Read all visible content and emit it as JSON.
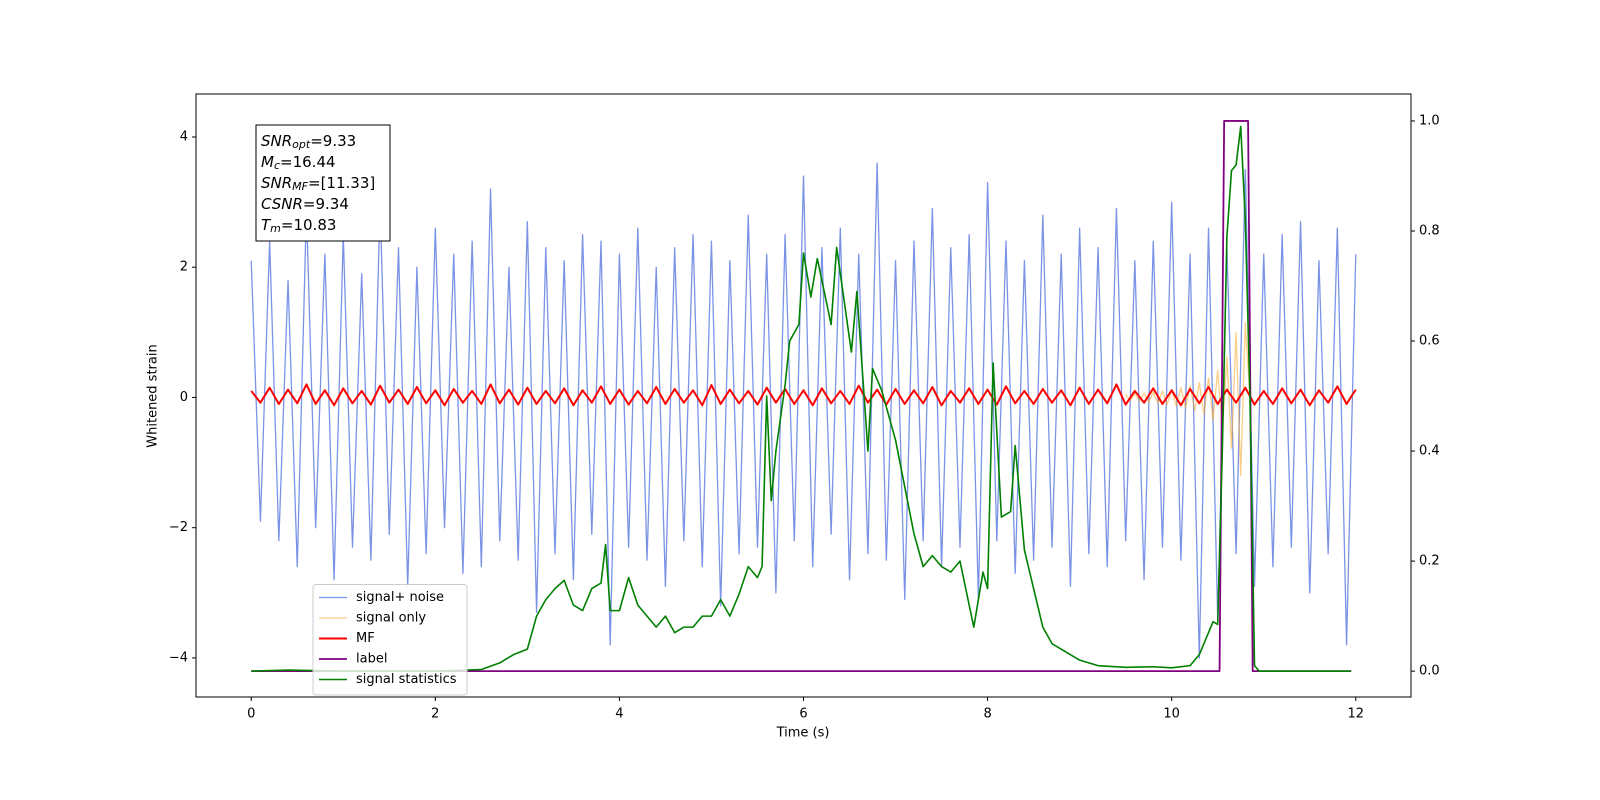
{
  "chart_data": {
    "type": "line",
    "xlabel": "Time (s)",
    "ylabel": "Whitened strain",
    "xlim": [
      -0.6,
      12.6
    ],
    "ylim": [
      -4.6,
      4.66
    ],
    "y2lim": [
      -0.047,
      1.049
    ],
    "xticks": [
      0,
      2,
      4,
      6,
      8,
      10,
      12
    ],
    "yticks": [
      {
        "value": -4,
        "label": "−4"
      },
      {
        "value": -2,
        "label": "−2"
      },
      0,
      2,
      4
    ],
    "y2ticks": [
      {
        "value": 0,
        "label": "0.0"
      },
      0.2,
      0.4,
      0.6,
      0.8,
      {
        "value": 1,
        "label": "1.0"
      }
    ],
    "legend_loc": "lower left",
    "annotation": [
      {
        "text": "SNR",
        "sub": "opt",
        "value": "=9.33"
      },
      {
        "text": "M",
        "sub": "c",
        "value": "=16.44"
      },
      {
        "text": "SNR",
        "sub": "MF",
        "value": "=[11.33]"
      },
      {
        "text": "CSNR",
        "sub": "",
        "value": "=9.34"
      },
      {
        "text": "T",
        "sub": "m",
        "value": "=10.83"
      }
    ],
    "series": [
      {
        "name": "signal+ noise",
        "color": "#7b93e6",
        "axis": "y",
        "x": [
          0,
          0.1,
          0.2,
          0.3,
          0.4,
          0.5,
          0.6,
          0.7,
          0.8,
          0.9,
          1,
          1.1,
          1.2,
          1.3,
          1.4,
          1.5,
          1.6,
          1.7,
          1.8,
          1.9,
          2,
          2.1,
          2.2,
          2.3,
          2.4,
          2.5,
          2.6,
          2.7,
          2.8,
          2.9,
          3,
          3.1,
          3.2,
          3.3,
          3.4,
          3.5,
          3.6,
          3.7,
          3.8,
          3.9,
          4,
          4.1,
          4.2,
          4.3,
          4.4,
          4.5,
          4.6,
          4.7,
          4.8,
          4.9,
          5,
          5.1,
          5.2,
          5.3,
          5.4,
          5.5,
          5.6,
          5.7,
          5.8,
          5.9,
          6,
          6.1,
          6.2,
          6.3,
          6.4,
          6.5,
          6.6,
          6.7,
          6.8,
          6.9,
          7,
          7.1,
          7.2,
          7.3,
          7.4,
          7.5,
          7.6,
          7.7,
          7.8,
          7.9,
          8,
          8.1,
          8.2,
          8.3,
          8.4,
          8.5,
          8.6,
          8.7,
          8.8,
          8.9,
          9,
          9.1,
          9.2,
          9.3,
          9.4,
          9.5,
          9.6,
          9.7,
          9.8,
          9.9,
          10,
          10.1,
          10.2,
          10.3,
          10.4,
          10.5,
          10.6,
          10.7,
          10.8,
          10.9,
          11,
          11.1,
          11.2,
          11.3,
          11.4,
          11.5,
          11.6,
          11.7,
          11.8,
          11.9,
          12
        ],
        "values": [
          2.1,
          -1.9,
          2.4,
          -2.2,
          1.8,
          -2.6,
          2.9,
          -2.0,
          2.2,
          -2.8,
          2.5,
          -2.3,
          1.9,
          -2.5,
          3.0,
          -2.1,
          2.3,
          -2.9,
          2.0,
          -2.4,
          2.6,
          -2.0,
          2.2,
          -2.7,
          2.4,
          -2.6,
          3.2,
          -2.2,
          2.0,
          -2.5,
          2.7,
          -3.3,
          2.3,
          -2.4,
          2.1,
          -2.8,
          2.5,
          -2.1,
          2.4,
          -3.8,
          2.2,
          -2.3,
          2.6,
          -2.5,
          2.0,
          -2.9,
          2.3,
          -2.2,
          2.5,
          -2.6,
          2.4,
          -3.2,
          2.1,
          -2.4,
          2.8,
          -2.3,
          2.2,
          -3.0,
          2.5,
          -2.2,
          3.4,
          -2.6,
          2.3,
          -2.1,
          2.6,
          -2.8,
          2.2,
          -2.4,
          3.6,
          -2.5,
          2.1,
          -3.1,
          2.4,
          -2.2,
          2.9,
          -2.6,
          2.3,
          -2.3,
          2.5,
          -3.1,
          3.3,
          -2.2,
          2.4,
          -2.7,
          2.1,
          -2.5,
          2.8,
          -2.3,
          2.2,
          -2.9,
          2.6,
          -2.4,
          2.3,
          -2.6,
          2.9,
          -2.2,
          2.1,
          -2.8,
          2.4,
          -2.3,
          3.0,
          -2.5,
          2.2,
          -4.0,
          2.6,
          -3.4,
          2.3,
          -2.4,
          3.5,
          -2.9,
          2.2,
          -2.6,
          2.5,
          -2.3,
          2.7,
          -3.0,
          2.1,
          -2.4,
          2.6,
          -3.8,
          2.2
        ]
      },
      {
        "name": "signal only",
        "color": "#f5a623",
        "axis": "y",
        "x": [
          9.5,
          9.55,
          9.6,
          9.65,
          9.7,
          9.75,
          9.8,
          9.85,
          9.9,
          9.95,
          10,
          10.05,
          10.1,
          10.15,
          10.2,
          10.25,
          10.3,
          10.35,
          10.4,
          10.45,
          10.5,
          10.55,
          10.6,
          10.65,
          10.7,
          10.75,
          10.8,
          10.85
        ],
        "values": [
          0.05,
          -0.05,
          0.06,
          -0.06,
          0.07,
          -0.07,
          0.08,
          -0.09,
          0.1,
          -0.11,
          0.12,
          -0.13,
          0.15,
          -0.16,
          0.18,
          -0.2,
          0.23,
          -0.26,
          0.3,
          -0.35,
          0.42,
          -0.5,
          0.62,
          -0.78,
          1.0,
          -1.2,
          1.15,
          0
        ]
      },
      {
        "name": "MF",
        "color": "#ff0000",
        "axis": "y",
        "x": [
          0,
          0.1,
          0.2,
          0.3,
          0.4,
          0.5,
          0.6,
          0.7,
          0.8,
          0.9,
          1,
          1.1,
          1.2,
          1.3,
          1.4,
          1.5,
          1.6,
          1.7,
          1.8,
          1.9,
          2,
          2.1,
          2.2,
          2.3,
          2.4,
          2.5,
          2.6,
          2.7,
          2.8,
          2.9,
          3,
          3.1,
          3.2,
          3.3,
          3.4,
          3.5,
          3.6,
          3.7,
          3.8,
          3.9,
          4,
          4.1,
          4.2,
          4.3,
          4.4,
          4.5,
          4.6,
          4.7,
          4.8,
          4.9,
          5,
          5.1,
          5.2,
          5.3,
          5.4,
          5.5,
          5.6,
          5.7,
          5.8,
          5.9,
          6,
          6.1,
          6.2,
          6.3,
          6.4,
          6.5,
          6.6,
          6.7,
          6.8,
          6.9,
          7,
          7.1,
          7.2,
          7.3,
          7.4,
          7.5,
          7.6,
          7.7,
          7.8,
          7.9,
          8,
          8.1,
          8.2,
          8.3,
          8.4,
          8.5,
          8.6,
          8.7,
          8.8,
          8.9,
          9,
          9.1,
          9.2,
          9.3,
          9.4,
          9.5,
          9.6,
          9.7,
          9.8,
          9.9,
          10,
          10.1,
          10.2,
          10.3,
          10.4,
          10.5,
          10.6,
          10.7,
          10.8,
          10.9,
          11,
          11.1,
          11.2,
          11.3,
          11.4,
          11.5,
          11.6,
          11.7,
          11.8,
          11.9,
          12
        ],
        "values": [
          0.1,
          -0.08,
          0.15,
          -0.1,
          0.12,
          -0.09,
          0.2,
          -0.1,
          0.11,
          -0.12,
          0.14,
          -0.09,
          0.1,
          -0.11,
          0.18,
          -0.08,
          0.12,
          -0.1,
          0.16,
          -0.09,
          0.11,
          -0.12,
          0.13,
          -0.08,
          0.1,
          -0.1,
          0.2,
          -0.09,
          0.12,
          -0.11,
          0.15,
          -0.1,
          0.1,
          -0.09,
          0.14,
          -0.12,
          0.11,
          -0.08,
          0.17,
          -0.1,
          0.12,
          -0.11,
          0.1,
          -0.09,
          0.16,
          -0.1,
          0.13,
          -0.08,
          0.11,
          -0.12,
          0.19,
          -0.1,
          0.12,
          -0.09,
          0.1,
          -0.11,
          0.15,
          -0.08,
          0.13,
          -0.1,
          0.11,
          -0.12,
          0.14,
          -0.09,
          0.1,
          -0.1,
          0.18,
          -0.08,
          0.12,
          -0.11,
          0.13,
          -0.1,
          0.11,
          -0.09,
          0.16,
          -0.12,
          0.1,
          -0.08,
          0.14,
          -0.1,
          0.12,
          -0.11,
          0.17,
          -0.09,
          0.1,
          -0.1,
          0.13,
          -0.08,
          0.11,
          -0.12,
          0.15,
          -0.1,
          0.12,
          -0.09,
          0.2,
          -0.11,
          0.1,
          -0.08,
          0.14,
          -0.1,
          0.11,
          -0.12,
          0.13,
          -0.09,
          0.16,
          -0.1,
          0.12,
          -0.08,
          0.15,
          -0.11,
          0.1,
          -0.1,
          0.14,
          -0.09,
          0.12,
          -0.12,
          0.11,
          -0.08,
          0.17,
          -0.1,
          0.12
        ]
      },
      {
        "name": "label",
        "color": "#800080",
        "axis": "y2",
        "x": [
          0,
          10.52,
          10.57,
          10.83,
          10.88,
          11.95
        ],
        "values": [
          0,
          0,
          1,
          1,
          0,
          0
        ]
      },
      {
        "name": "signal statistics",
        "color": "#008000",
        "axis": "y2",
        "x": [
          0,
          0.4,
          1,
          2,
          2.5,
          2.7,
          2.85,
          3.0,
          3.1,
          3.2,
          3.3,
          3.4,
          3.5,
          3.6,
          3.7,
          3.8,
          3.85,
          3.9,
          4.0,
          4.1,
          4.2,
          4.3,
          4.4,
          4.5,
          4.6,
          4.7,
          4.8,
          4.9,
          5.0,
          5.1,
          5.2,
          5.3,
          5.4,
          5.5,
          5.55,
          5.6,
          5.65,
          5.7,
          5.8,
          5.85,
          5.95,
          6.0,
          6.08,
          6.15,
          6.25,
          6.3,
          6.36,
          6.52,
          6.58,
          6.7,
          6.75,
          6.85,
          7.0,
          7.2,
          7.3,
          7.4,
          7.5,
          7.6,
          7.7,
          7.8,
          7.85,
          7.95,
          8.0,
          8.06,
          8.15,
          8.25,
          8.3,
          8.4,
          8.5,
          8.6,
          8.7,
          8.8,
          8.9,
          9.0,
          9.2,
          9.5,
          9.8,
          10.0,
          10.2,
          10.3,
          10.4,
          10.45,
          10.5,
          10.55,
          10.6,
          10.65,
          10.7,
          10.75,
          10.8,
          10.85,
          10.9,
          10.95,
          11.5,
          11.95
        ],
        "values": [
          0,
          0.002,
          0,
          0,
          0.003,
          0.015,
          0.03,
          0.04,
          0.1,
          0.13,
          0.15,
          0.165,
          0.12,
          0.11,
          0.15,
          0.16,
          0.23,
          0.11,
          0.11,
          0.17,
          0.12,
          0.1,
          0.08,
          0.1,
          0.07,
          0.08,
          0.08,
          0.1,
          0.1,
          0.13,
          0.1,
          0.14,
          0.19,
          0.17,
          0.19,
          0.5,
          0.31,
          0.4,
          0.52,
          0.6,
          0.63,
          0.76,
          0.68,
          0.75,
          0.67,
          0.63,
          0.77,
          0.58,
          0.69,
          0.4,
          0.55,
          0.51,
          0.42,
          0.25,
          0.19,
          0.21,
          0.19,
          0.18,
          0.2,
          0.12,
          0.08,
          0.18,
          0.15,
          0.56,
          0.28,
          0.29,
          0.41,
          0.22,
          0.15,
          0.08,
          0.05,
          0.04,
          0.03,
          0.02,
          0.01,
          0.007,
          0.008,
          0.006,
          0.01,
          0.03,
          0.07,
          0.09,
          0.085,
          0.4,
          0.79,
          0.91,
          0.92,
          0.99,
          0.82,
          0.5,
          0.01,
          0,
          0,
          0
        ]
      }
    ]
  }
}
